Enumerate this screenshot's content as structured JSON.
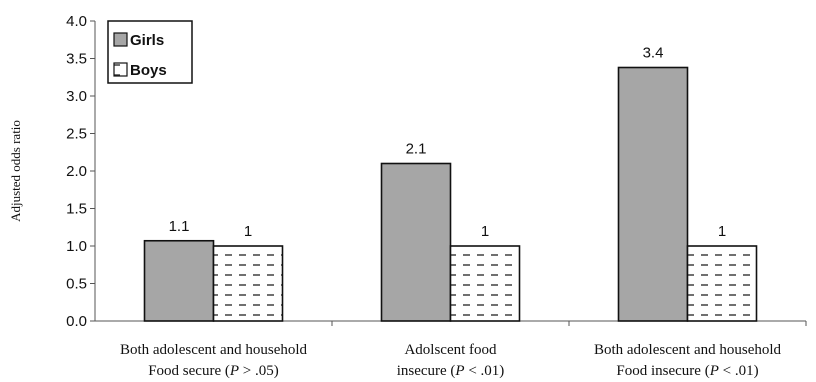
{
  "chart_data": {
    "type": "bar",
    "title": "",
    "xlabel": "",
    "ylabel": "Adjusted odds ratio",
    "ylim": [
      0,
      4.0
    ],
    "yticks": [
      "0.0",
      "0.5",
      "1.0",
      "1.5",
      "2.0",
      "2.5",
      "3.0",
      "3.5",
      "4.0"
    ],
    "categories": [
      {
        "line1": "Both adolescent and household",
        "line2_pre": "Food secure (",
        "p": "P",
        "line2_post": " > .05)"
      },
      {
        "line1": "Adolscent food",
        "line2_pre": "insecure (",
        "p": "P",
        "line2_post": " < .01)"
      },
      {
        "line1": "Both adolescent and household",
        "line2_pre": "Food insecure (",
        "p": "P",
        "line2_post": " < .01)"
      }
    ],
    "series": [
      {
        "name": "Girls",
        "values": [
          1.07,
          2.1,
          3.38
        ],
        "labels": [
          "1.1",
          "2.1",
          "3.4"
        ],
        "color": "#a6a6a6"
      },
      {
        "name": "Boys",
        "values": [
          1.0,
          1.0,
          1.0
        ],
        "labels": [
          "1",
          "1",
          "1"
        ],
        "color": "#ffffff"
      }
    ],
    "legend": "top-left",
    "grid": false
  }
}
